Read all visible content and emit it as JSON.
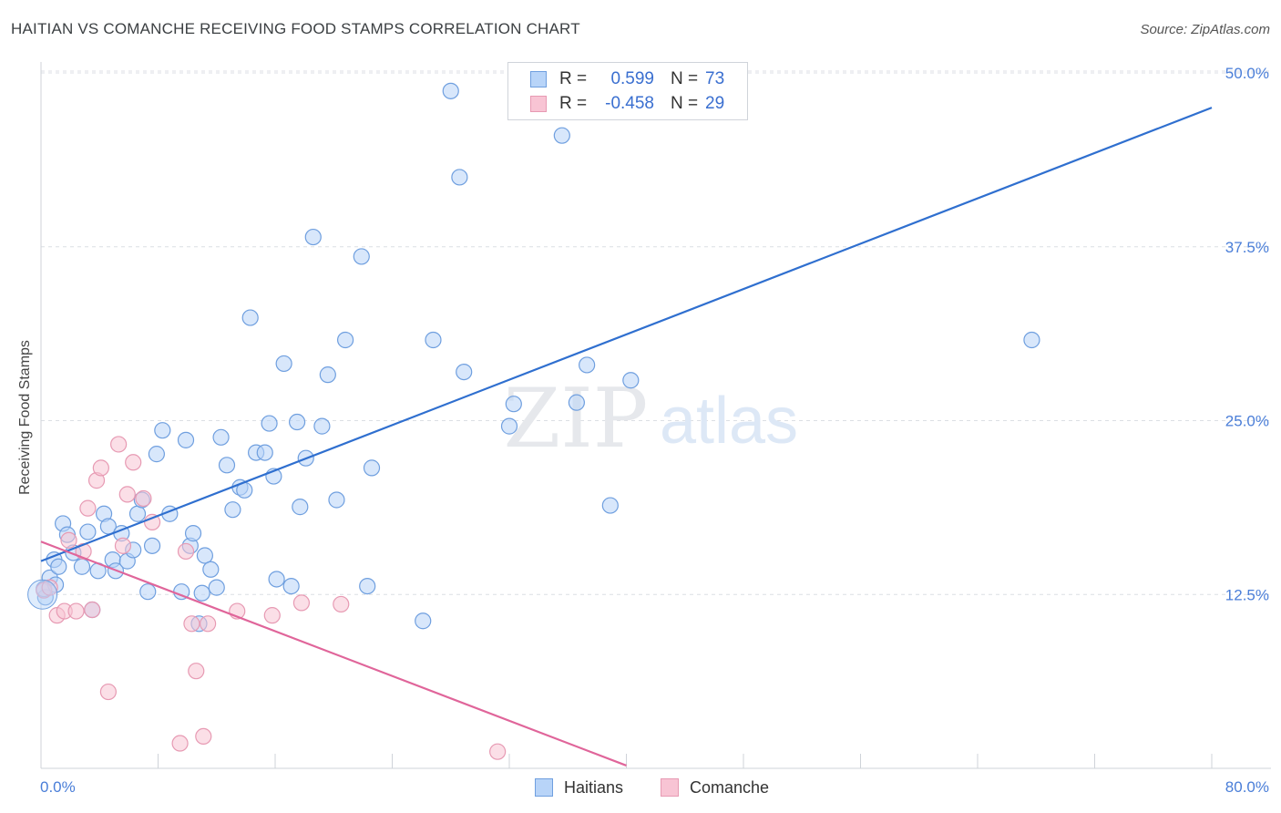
{
  "title": "HAITIAN VS COMANCHE RECEIVING FOOD STAMPS CORRELATION CHART",
  "source": "Source: ZipAtlas.com",
  "watermark": {
    "zip": "ZIP",
    "atlas": "atlas"
  },
  "legend": {
    "rows": [
      {
        "r_label": "R =",
        "r_value": "0.599",
        "n_label": "N =",
        "n_value": "73"
      },
      {
        "r_label": "R =",
        "r_value": "-0.458",
        "n_label": "N =",
        "n_value": "29"
      }
    ],
    "bottom": [
      "Haitians",
      "Comanche"
    ]
  },
  "colors": {
    "blue_fill": "#b8d4f8",
    "blue_stroke": "#6f9fdf",
    "blue_line": "#2f6fcf",
    "pink_fill": "#f8c4d4",
    "pink_stroke": "#e79ab3",
    "pink_line": "#e0659a",
    "grid": "#dcdfe4",
    "tick_text": "#4a7ed8"
  },
  "chart_data": {
    "type": "scatter",
    "title": "HAITIAN VS COMANCHE RECEIVING FOOD STAMPS CORRELATION CHART",
    "xlabel": "",
    "ylabel": "Receiving Food Stamps",
    "xlim": [
      0,
      80
    ],
    "ylim": [
      0,
      50
    ],
    "x_tick_labels": [
      "0.0%",
      "80.0%"
    ],
    "y_ticks": [
      12.5,
      25.0,
      37.5,
      50.0
    ],
    "y_tick_labels": [
      "12.5%",
      "25.0%",
      "37.5%",
      "50.0%"
    ],
    "series": [
      {
        "name": "Haitians",
        "r": 0.599,
        "n": 73,
        "trend": {
          "x": [
            0,
            80
          ],
          "y": [
            14.9,
            47.5
          ]
        },
        "points": [
          [
            0.3,
            12.3
          ],
          [
            0.6,
            13.7
          ],
          [
            0.9,
            15.0
          ],
          [
            1.2,
            14.5
          ],
          [
            1.5,
            17.6
          ],
          [
            1.8,
            16.8
          ],
          [
            2.2,
            15.5
          ],
          [
            2.8,
            14.5
          ],
          [
            3.2,
            17.0
          ],
          [
            3.5,
            11.4
          ],
          [
            3.9,
            14.2
          ],
          [
            4.3,
            18.3
          ],
          [
            4.6,
            17.4
          ],
          [
            4.9,
            15.0
          ],
          [
            5.1,
            14.2
          ],
          [
            5.5,
            16.9
          ],
          [
            5.9,
            14.9
          ],
          [
            6.3,
            15.7
          ],
          [
            6.6,
            18.3
          ],
          [
            6.9,
            19.3
          ],
          [
            7.3,
            12.7
          ],
          [
            7.6,
            16.0
          ],
          [
            7.9,
            22.6
          ],
          [
            8.3,
            24.3
          ],
          [
            8.8,
            18.3
          ],
          [
            9.6,
            12.7
          ],
          [
            9.9,
            23.6
          ],
          [
            10.2,
            16.0
          ],
          [
            10.4,
            16.9
          ],
          [
            10.8,
            10.4
          ],
          [
            11.2,
            15.3
          ],
          [
            11.6,
            14.3
          ],
          [
            11.0,
            12.6
          ],
          [
            12.0,
            13.0
          ],
          [
            12.3,
            23.8
          ],
          [
            12.7,
            21.8
          ],
          [
            13.1,
            18.6
          ],
          [
            13.6,
            20.2
          ],
          [
            13.9,
            20.0
          ],
          [
            14.3,
            32.4
          ],
          [
            14.7,
            22.7
          ],
          [
            15.3,
            22.7
          ],
          [
            15.6,
            24.8
          ],
          [
            15.9,
            21.0
          ],
          [
            16.1,
            13.6
          ],
          [
            16.6,
            29.1
          ],
          [
            17.1,
            13.1
          ],
          [
            17.5,
            24.9
          ],
          [
            17.7,
            18.8
          ],
          [
            18.1,
            22.3
          ],
          [
            18.6,
            38.2
          ],
          [
            19.2,
            24.6
          ],
          [
            19.6,
            28.3
          ],
          [
            20.2,
            19.3
          ],
          [
            20.8,
            30.8
          ],
          [
            21.9,
            36.8
          ],
          [
            22.3,
            13.1
          ],
          [
            22.6,
            21.6
          ],
          [
            26.1,
            10.6
          ],
          [
            26.8,
            30.8
          ],
          [
            28.0,
            48.7
          ],
          [
            28.6,
            42.5
          ],
          [
            28.9,
            28.5
          ],
          [
            32.0,
            24.6
          ],
          [
            32.3,
            26.2
          ],
          [
            35.6,
            45.5
          ],
          [
            36.6,
            26.3
          ],
          [
            37.3,
            29.0
          ],
          [
            38.9,
            18.9
          ],
          [
            40.3,
            27.9
          ],
          [
            67.7,
            30.8
          ],
          [
            0.2,
            12.9
          ],
          [
            1.0,
            13.2
          ]
        ]
      },
      {
        "name": "Comanche",
        "r": -0.458,
        "n": 29,
        "trend": {
          "x": [
            0,
            40
          ],
          "y": [
            16.3,
            0.2
          ]
        },
        "points": [
          [
            0.2,
            12.8
          ],
          [
            0.6,
            13.0
          ],
          [
            1.1,
            11.0
          ],
          [
            1.6,
            11.3
          ],
          [
            1.9,
            16.4
          ],
          [
            2.4,
            11.3
          ],
          [
            2.9,
            15.6
          ],
          [
            3.2,
            18.7
          ],
          [
            3.5,
            11.4
          ],
          [
            3.8,
            20.7
          ],
          [
            4.1,
            21.6
          ],
          [
            4.6,
            5.5
          ],
          [
            5.3,
            23.3
          ],
          [
            5.6,
            16.0
          ],
          [
            5.9,
            19.7
          ],
          [
            6.3,
            22.0
          ],
          [
            7.0,
            19.4
          ],
          [
            7.6,
            17.7
          ],
          [
            9.5,
            1.8
          ],
          [
            9.9,
            15.6
          ],
          [
            10.3,
            10.4
          ],
          [
            10.6,
            7.0
          ],
          [
            11.1,
            2.3
          ],
          [
            11.4,
            10.4
          ],
          [
            13.4,
            11.3
          ],
          [
            15.8,
            11.0
          ],
          [
            17.8,
            11.9
          ],
          [
            20.5,
            11.8
          ],
          [
            31.2,
            1.2
          ]
        ]
      }
    ]
  }
}
